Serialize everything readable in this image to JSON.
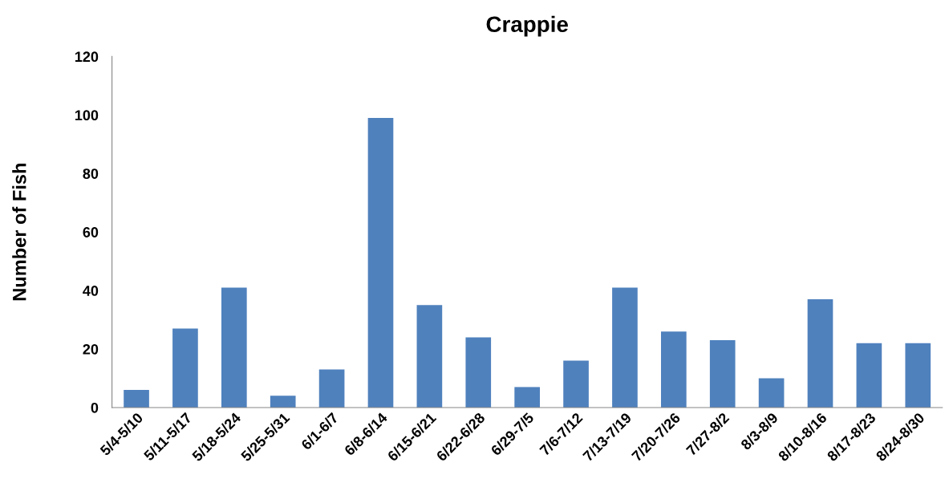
{
  "chart_data": {
    "type": "bar",
    "title": "Crappie",
    "ylabel": "Number of Fish",
    "categories": [
      "5/4-5/10",
      "5/11-5/17",
      "5/18-5/24",
      "5/25-5/31",
      "6/1-6/7",
      "6/8-6/14",
      "6/15-6/21",
      "6/22-6/28",
      "6/29-7/5",
      "7/6-7/12",
      "7/13-7/19",
      "7/20-7/26",
      "7/27-8/2",
      "8/3-8/9",
      "8/10-8/16",
      "8/17-8/23",
      "8/24-8/30"
    ],
    "values": [
      6,
      27,
      41,
      4,
      13,
      99,
      35,
      24,
      7,
      16,
      41,
      26,
      23,
      10,
      37,
      22,
      22
    ],
    "color": "#4f81bd",
    "ylim": [
      0,
      120
    ],
    "yticks": [
      0,
      20,
      40,
      60,
      80,
      100,
      120
    ],
    "grid": false
  }
}
